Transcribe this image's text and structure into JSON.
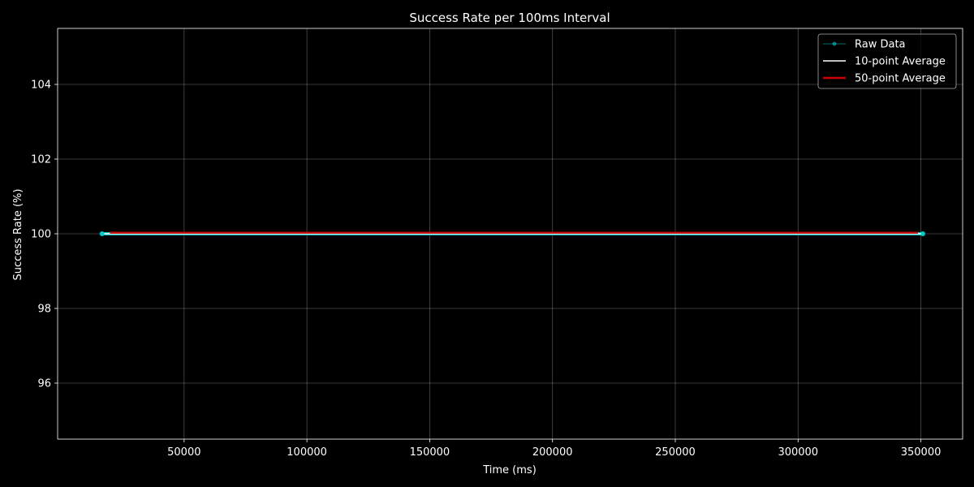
{
  "chart_data": {
    "type": "line",
    "title": "Success Rate per 100ms Interval",
    "xlabel": "Time (ms)",
    "ylabel": "Success Rate (%)",
    "xlim": [
      -1500,
      367000
    ],
    "ylim": [
      94.5,
      105.5
    ],
    "x_ticks": [
      50000,
      100000,
      150000,
      200000,
      250000,
      300000,
      350000
    ],
    "x_tick_labels": [
      "50000",
      "100000",
      "150000",
      "200000",
      "250000",
      "300000",
      "350000"
    ],
    "y_ticks": [
      96,
      98,
      100,
      102,
      104
    ],
    "y_tick_labels": [
      "96",
      "98",
      "100",
      "102",
      "104"
    ],
    "grid": true,
    "legend_position": "top-right",
    "background": "#000000",
    "series": [
      {
        "name": "Raw Data",
        "color": "#00cccc",
        "style": "line-with-markers",
        "x": [
          16600,
          350800
        ],
        "y": [
          100,
          100
        ]
      },
      {
        "name": "10-point Average",
        "color": "#ffffff",
        "style": "line",
        "x": [
          17500,
          350000
        ],
        "y": [
          100,
          100
        ]
      },
      {
        "name": "50-point Average",
        "color": "#cc0000",
        "style": "thick-line",
        "x": [
          19800,
          348800
        ],
        "y": [
          100,
          100
        ]
      }
    ]
  }
}
